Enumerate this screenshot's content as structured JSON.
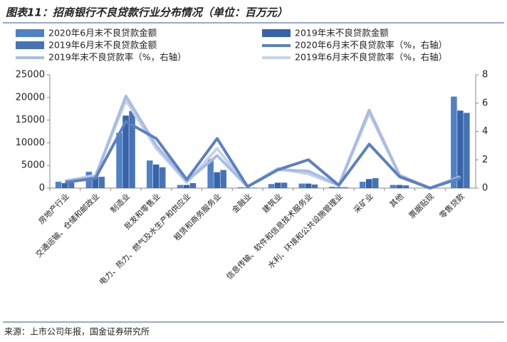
{
  "chart_data": {
    "type": "bar_line",
    "title": "图表11：招商银行不良贷款行业分布情况（单位：百万元）",
    "source": "来源：上市公司年报，国金证券研究所",
    "categories": [
      "房地产行业",
      "交通运输、仓储和邮政业",
      "制造业",
      "批发和零售业",
      "电力、热力、燃气及水生产和供应业",
      "租赁和商务服务业",
      "金融业",
      "建筑业",
      "信息传输、软件和信息技术服务业",
      "水利、环境和公共设施管理业",
      "采矿业",
      "其他",
      "票据贴现",
      "零售贷款"
    ],
    "series": [
      {
        "name": "2020年6月末不良贷款金额",
        "type": "bar",
        "color": "#4f81c6",
        "values": [
          1400,
          3600,
          12200,
          6100,
          700,
          6400,
          200,
          900,
          1000,
          300,
          1400,
          700,
          0,
          20200
        ]
      },
      {
        "name": "2019年末不良贷款金额",
        "type": "bar",
        "color": "#3764a8",
        "values": [
          1100,
          2500,
          16000,
          5200,
          700,
          3500,
          100,
          1200,
          1000,
          200,
          2000,
          700,
          0,
          17100
        ]
      },
      {
        "name": "2019年6月末不良贷款金额",
        "type": "bar",
        "color": "#4673b5",
        "values": [
          1200,
          2500,
          17000,
          4600,
          1100,
          4000,
          100,
          1200,
          800,
          200,
          2200,
          600,
          0,
          16600
        ]
      },
      {
        "name": "2020年6月末不良贷款率（%，右轴）",
        "type": "line",
        "axis": "y2",
        "color": "#5b80c2",
        "values": [
          0.4,
          0.7,
          4.7,
          3.5,
          0.6,
          3.5,
          0.1,
          1.3,
          2.0,
          0.2,
          3.1,
          0.8,
          0,
          0.7
        ]
      },
      {
        "name": "2019年末不良贷款率（%，右轴）",
        "type": "line",
        "axis": "y2",
        "color": "#a9bde1",
        "values": [
          0.5,
          0.8,
          6.5,
          3.0,
          0.5,
          2.3,
          0.1,
          1.3,
          1.2,
          0.2,
          5.5,
          0.9,
          0,
          0.8
        ]
      },
      {
        "name": "2019年6月末不良贷款率（%，右轴）",
        "type": "line",
        "axis": "y2",
        "color": "#c7d3ea",
        "values": [
          0.5,
          0.9,
          6.2,
          2.8,
          0.4,
          2.8,
          0.1,
          1.4,
          1.0,
          0.2,
          5.3,
          0.9,
          0,
          0.8
        ]
      }
    ],
    "ylim": [
      0,
      25000
    ],
    "yticks": [
      0,
      5000,
      10000,
      15000,
      20000,
      25000
    ],
    "y2lim": [
      0,
      8
    ],
    "y2ticks": [
      0,
      2,
      4,
      6,
      8
    ]
  }
}
